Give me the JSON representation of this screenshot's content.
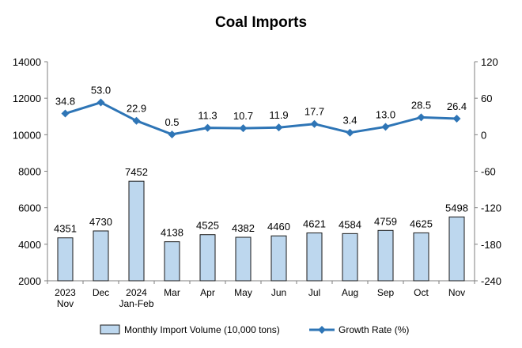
{
  "chart_data": {
    "type": "bar",
    "title": "Coal Imports",
    "categories": [
      [
        "2023",
        "Nov"
      ],
      [
        "Dec"
      ],
      [
        "2024",
        "Jan-Feb"
      ],
      [
        "Mar"
      ],
      [
        "Apr"
      ],
      [
        "May"
      ],
      [
        "Jun"
      ],
      [
        "Jul"
      ],
      [
        "Aug"
      ],
      [
        "Sep"
      ],
      [
        "Oct"
      ],
      [
        "Nov"
      ]
    ],
    "y_left": {
      "lim": [
        2000,
        14000
      ],
      "ticks": [
        "2000",
        "4000",
        "6000",
        "8000",
        "10000",
        "12000",
        "14000"
      ]
    },
    "y_right": {
      "lim": [
        -240,
        120
      ],
      "ticks": [
        "-240",
        "-180",
        "-120",
        "-60",
        "0",
        "60",
        "120"
      ]
    },
    "series": [
      {
        "name": "Monthly Import Volume (10,000 tons)",
        "type": "bar",
        "axis": "left",
        "values": [
          4351,
          4730,
          7452,
          4138,
          4525,
          4382,
          4460,
          4621,
          4584,
          4759,
          4625,
          5498
        ],
        "labels": [
          "4351",
          "4730",
          "7452",
          "4138",
          "4525",
          "4382",
          "4460",
          "4621",
          "4584",
          "4759",
          "4625",
          "5498"
        ]
      },
      {
        "name": "Growth Rate (%)",
        "type": "line",
        "axis": "right",
        "values": [
          34.8,
          53.0,
          22.9,
          0.5,
          11.3,
          10.7,
          11.9,
          17.7,
          3.4,
          13.0,
          28.5,
          26.4
        ],
        "labels": [
          "34.8",
          "53.0",
          "22.9",
          "0.5",
          "11.3",
          "10.7",
          "11.9",
          "17.7",
          "3.4",
          "13.0",
          "28.5",
          "26.4"
        ]
      }
    ],
    "legend_position": "bottom",
    "grid": false,
    "colors": {
      "bar_fill": "#bdd7ee",
      "bar_stroke": "#1a1a1a",
      "line": "#2e75b6"
    }
  }
}
